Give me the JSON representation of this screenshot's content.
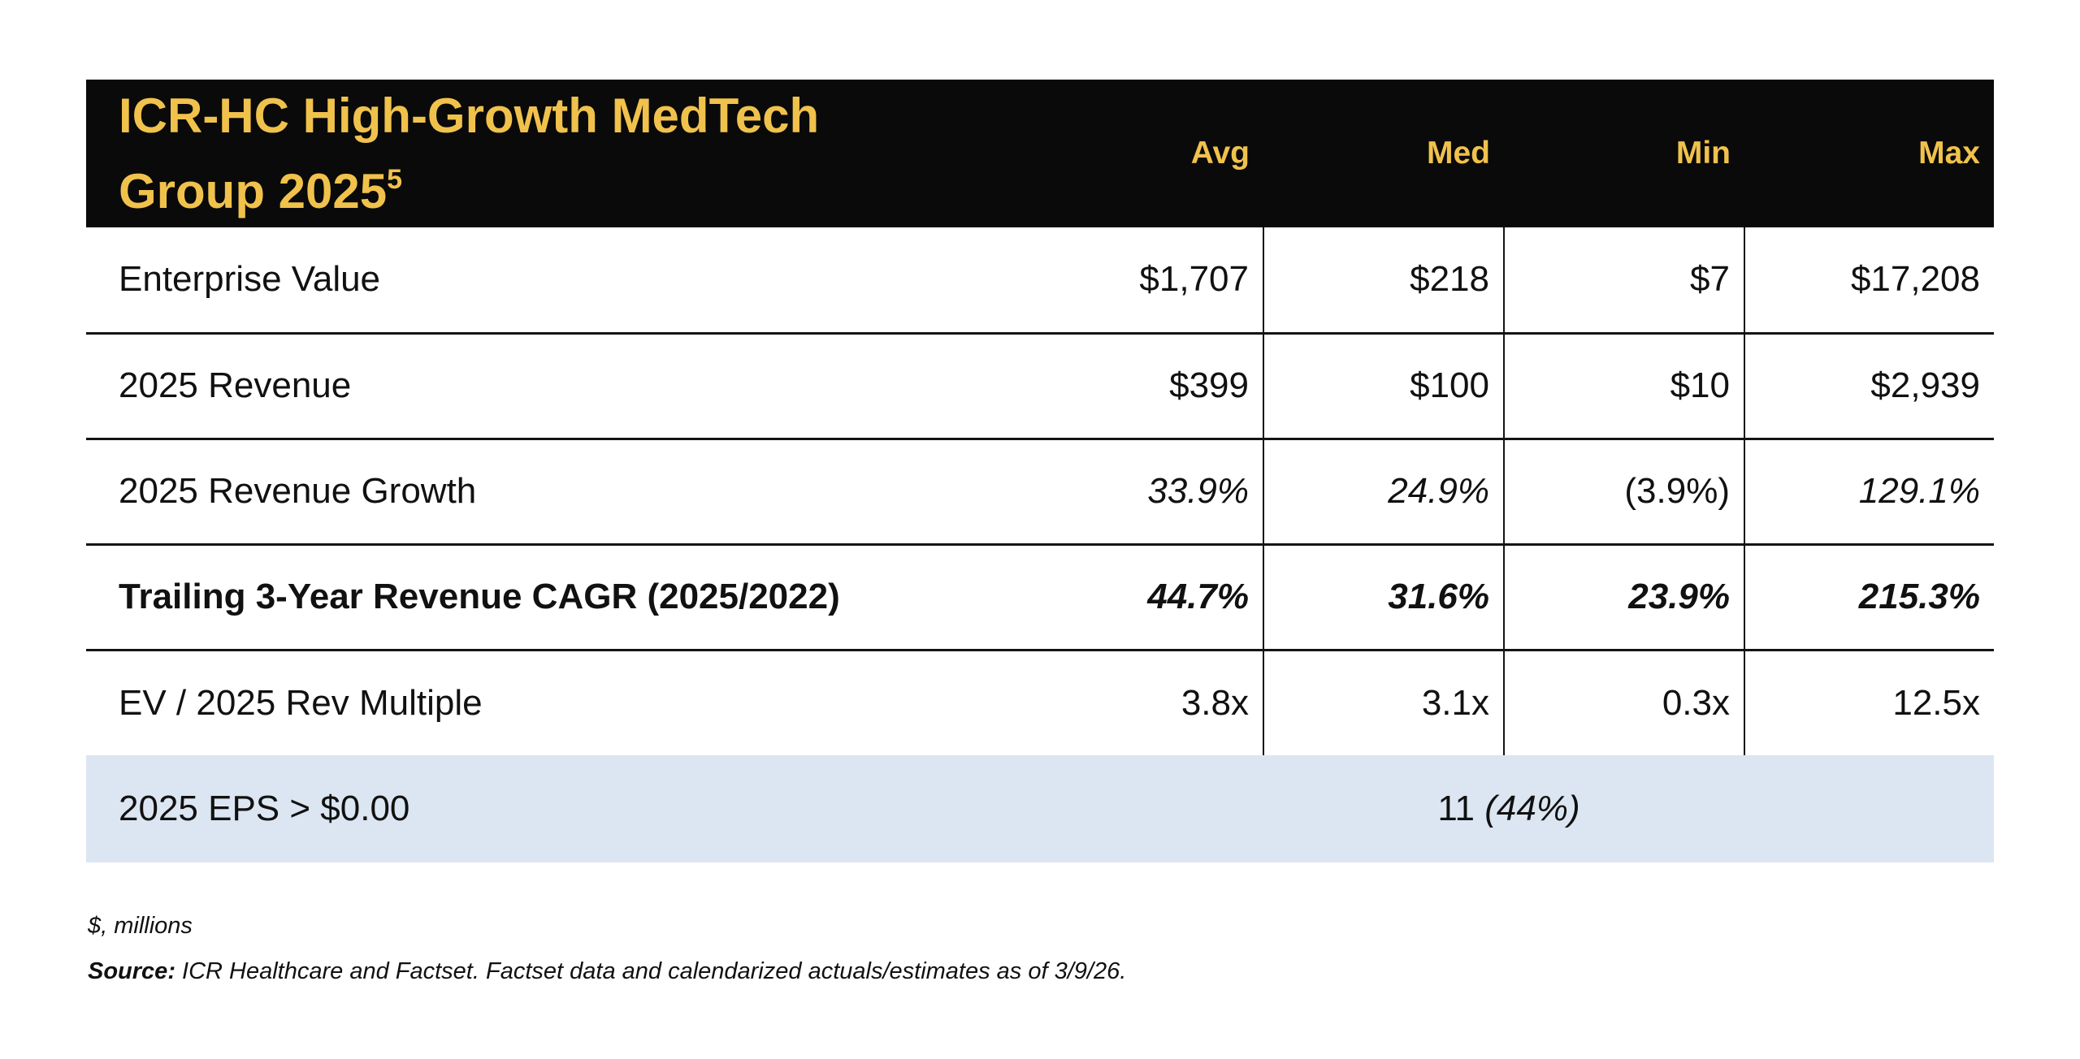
{
  "table": {
    "title_line1": "ICR-HC High-Growth MedTech",
    "title_line2": "Group 2025",
    "title_superscript": "5",
    "columns": [
      "Avg",
      "Med",
      "Min",
      "Max"
    ],
    "rows": [
      {
        "label": "Enterprise Value",
        "values": [
          "$1,707",
          "$218",
          "$7",
          "$17,208"
        ]
      },
      {
        "label": "2025 Revenue",
        "values": [
          "$399",
          "$100",
          "$10",
          "$2,939"
        ]
      },
      {
        "label": "2025 Revenue Growth",
        "values": [
          "33.9%",
          "24.9%",
          "(3.9%)",
          "129.1%"
        ]
      },
      {
        "label": "Trailing 3-Year Revenue CAGR (2025/2022)",
        "values": [
          "44.7%",
          "31.6%",
          "23.9%",
          "215.3%"
        ]
      },
      {
        "label": "EV / 2025 Rev Multiple",
        "values": [
          "3.8x",
          "3.1x",
          "0.3x",
          "12.5x"
        ]
      }
    ],
    "eps_row": {
      "label": "2025 EPS > $0.00",
      "count": "11",
      "pct": "(44%)"
    }
  },
  "footnotes": {
    "units": "$, millions",
    "source_label": "Source:",
    "source_text": " ICR Healthcare and Factset. Factset data and calendarized actuals/estimates as of 3/9/26."
  },
  "colors": {
    "header_bg": "#0a0a0a",
    "header_text": "#f0c24c",
    "highlight_row_bg": "#dce6f2",
    "body_text": "#111111",
    "line": "#141414"
  }
}
